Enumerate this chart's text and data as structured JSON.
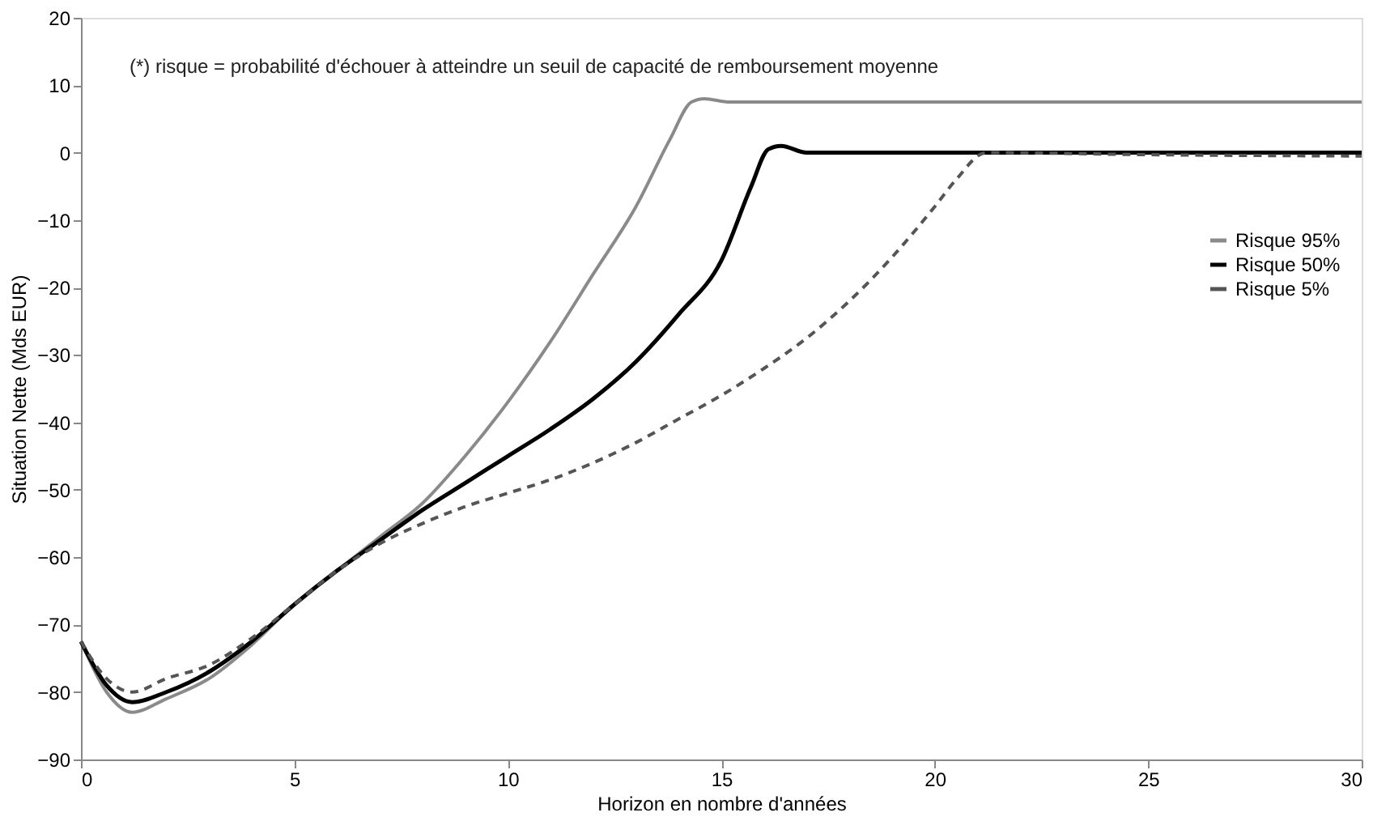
{
  "chart_data": {
    "type": "line",
    "xlabel": "Horizon en nombre d'années",
    "ylabel": "Situation Nette (Mds EUR)",
    "annotations": [
      "(*) risque = probabilité d'échouer à atteindre un seuil de capacité de remboursement moyenne"
    ],
    "xlim": [
      0,
      30
    ],
    "xticks": [
      0,
      5,
      10,
      15,
      20,
      25,
      30
    ],
    "ylim": [
      -90,
      20
    ],
    "yticks": [
      -90,
      -80,
      -70,
      -60,
      -50,
      -40,
      -30,
      -20,
      -10,
      0,
      10,
      20
    ],
    "grid": false,
    "legend": "right",
    "marker": "none",
    "series": [
      {
        "name": "Risque 95%",
        "color": "#8a8a8a",
        "line_style": "solid",
        "x": [
          0,
          0.6,
          1.2,
          2,
          3,
          4,
          5,
          6,
          7,
          8,
          9,
          10,
          11,
          12,
          13,
          13.8,
          14.3,
          14.6,
          15.2,
          20,
          25,
          30
        ],
        "values": [
          -72.5,
          -80,
          -83,
          -81,
          -78,
          -73,
          -67,
          -62,
          -57,
          -52,
          -45,
          -37,
          -28,
          -18,
          -8,
          2,
          7.5,
          8,
          7.5,
          7.5,
          7.5,
          7.5
        ]
      },
      {
        "name": "Risque 50%",
        "color": "#000000",
        "line_style": "solid",
        "x": [
          0,
          0.6,
          1.2,
          2,
          3,
          4,
          5,
          6,
          7,
          8,
          9,
          10,
          11,
          12,
          13,
          14,
          15,
          15.7,
          16.1,
          16.4,
          17,
          20,
          25,
          30
        ],
        "values": [
          -72.5,
          -79,
          -81.5,
          -80,
          -77,
          -72.5,
          -67,
          -62,
          -57.5,
          -53,
          -49,
          -45,
          -41,
          -36.5,
          -31,
          -24,
          -16,
          -5,
          0.5,
          1,
          0,
          0,
          0,
          0
        ]
      },
      {
        "name": "Risque 5%",
        "color": "#555555",
        "line_style": "dashed",
        "x": [
          0,
          0.6,
          1.2,
          2,
          3,
          4,
          5,
          6,
          7,
          8,
          9,
          10,
          11,
          12,
          13,
          14,
          15,
          16,
          17,
          18,
          19,
          20,
          20.5,
          21.2,
          25,
          30
        ],
        "values": [
          -72.5,
          -78,
          -80,
          -78,
          -76,
          -72,
          -67,
          -62,
          -58,
          -55,
          -52.5,
          -50.5,
          -48.5,
          -46,
          -43,
          -39.5,
          -36,
          -32,
          -27.5,
          -22,
          -15.5,
          -8,
          -4,
          0,
          -0.3,
          -0.5
        ]
      }
    ]
  }
}
